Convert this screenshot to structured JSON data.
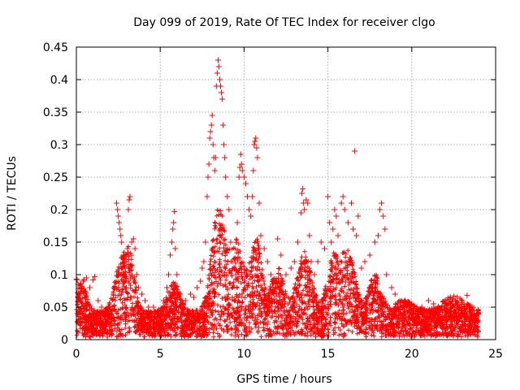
{
  "chart_data": {
    "type": "scatter",
    "title": "Day 099 of 2019, Rate Of TEC Index for receiver clgo",
    "xlabel": "GPS time / hours",
    "ylabel": "ROTI / TECUs",
    "xlim": [
      0,
      25
    ],
    "ylim": [
      0,
      0.45
    ],
    "xticks": [
      0,
      5,
      10,
      15,
      20,
      25
    ],
    "xtick_labels": [
      "0",
      "5",
      "10",
      "15",
      "20",
      "25"
    ],
    "yticks": [
      0,
      0.05,
      0.1,
      0.15,
      0.2,
      0.25,
      0.3,
      0.35,
      0.4,
      0.45
    ],
    "ytick_labels": [
      "0",
      "0.05",
      "0.1",
      "0.15",
      "0.2",
      "0.25",
      "0.3",
      "0.35",
      "0.4",
      "0.45"
    ],
    "grid": true,
    "marker": "+",
    "color": "#ff0000",
    "series": [
      {
        "name": "ROTI",
        "points": [
          [
            0.0,
            0.093
          ],
          [
            0.05,
            0.092
          ],
          [
            0.1,
            0.085
          ],
          [
            0.2,
            0.07
          ],
          [
            0.3,
            0.08
          ],
          [
            0.4,
            0.09
          ],
          [
            0.45,
            0.092
          ],
          [
            0.6,
            0.095
          ],
          [
            0.8,
            0.08
          ],
          [
            1.0,
            0.092
          ],
          [
            1.1,
            0.097
          ],
          [
            1.3,
            0.06
          ],
          [
            1.5,
            0.05
          ],
          [
            1.7,
            0.04
          ],
          [
            2.0,
            0.05
          ],
          [
            2.2,
            0.07
          ],
          [
            2.4,
            0.21
          ],
          [
            2.45,
            0.2
          ],
          [
            2.5,
            0.19
          ],
          [
            2.55,
            0.18
          ],
          [
            2.6,
            0.17
          ],
          [
            2.65,
            0.16
          ],
          [
            2.7,
            0.15
          ],
          [
            2.8,
            0.13
          ],
          [
            2.9,
            0.11
          ],
          [
            3.0,
            0.12
          ],
          [
            3.05,
            0.14
          ],
          [
            3.1,
            0.2
          ],
          [
            3.15,
            0.215
          ],
          [
            3.2,
            0.22
          ],
          [
            3.3,
            0.15
          ],
          [
            3.4,
            0.155
          ],
          [
            3.5,
            0.14
          ],
          [
            3.6,
            0.1
          ],
          [
            3.7,
            0.08
          ],
          [
            3.9,
            0.07
          ],
          [
            4.1,
            0.06
          ],
          [
            4.3,
            0.05
          ],
          [
            4.6,
            0.05
          ],
          [
            4.9,
            0.04
          ],
          [
            5.2,
            0.06
          ],
          [
            5.4,
            0.08
          ],
          [
            5.5,
            0.1
          ],
          [
            5.6,
            0.13
          ],
          [
            5.7,
            0.15
          ],
          [
            5.75,
            0.17
          ],
          [
            5.8,
            0.18
          ],
          [
            5.85,
            0.197
          ],
          [
            5.9,
            0.14
          ],
          [
            6.0,
            0.1
          ],
          [
            6.2,
            0.07
          ],
          [
            6.5,
            0.06
          ],
          [
            6.8,
            0.07
          ],
          [
            7.0,
            0.065
          ],
          [
            7.2,
            0.08
          ],
          [
            7.4,
            0.09
          ],
          [
            7.5,
            0.11
          ],
          [
            7.6,
            0.12
          ],
          [
            7.7,
            0.15
          ],
          [
            7.8,
            0.22
          ],
          [
            7.85,
            0.25
          ],
          [
            7.9,
            0.27
          ],
          [
            7.95,
            0.31
          ],
          [
            8.0,
            0.32
          ],
          [
            8.05,
            0.33
          ],
          [
            8.1,
            0.345
          ],
          [
            8.15,
            0.3
          ],
          [
            8.2,
            0.28
          ],
          [
            8.25,
            0.26
          ],
          [
            8.3,
            0.28
          ],
          [
            8.35,
            0.39
          ],
          [
            8.4,
            0.41
          ],
          [
            8.45,
            0.43
          ],
          [
            8.5,
            0.42
          ],
          [
            8.55,
            0.4
          ],
          [
            8.6,
            0.39
          ],
          [
            8.65,
            0.38
          ],
          [
            8.7,
            0.37
          ],
          [
            8.75,
            0.33
          ],
          [
            8.8,
            0.3
          ],
          [
            8.85,
            0.28
          ],
          [
            8.9,
            0.25
          ],
          [
            9.0,
            0.22
          ],
          [
            9.1,
            0.2
          ],
          [
            9.2,
            0.15
          ],
          [
            9.3,
            0.12
          ],
          [
            9.5,
            0.1
          ],
          [
            9.6,
            0.18
          ],
          [
            9.7,
            0.25
          ],
          [
            9.75,
            0.265
          ],
          [
            9.8,
            0.285
          ],
          [
            9.85,
            0.27
          ],
          [
            9.9,
            0.26
          ],
          [
            10.0,
            0.25
          ],
          [
            10.1,
            0.24
          ],
          [
            10.2,
            0.22
          ],
          [
            10.3,
            0.2
          ],
          [
            10.4,
            0.19
          ],
          [
            10.5,
            0.22
          ],
          [
            10.55,
            0.26
          ],
          [
            10.6,
            0.3
          ],
          [
            10.65,
            0.305
          ],
          [
            10.7,
            0.31
          ],
          [
            10.75,
            0.295
          ],
          [
            10.8,
            0.28
          ],
          [
            10.9,
            0.21
          ],
          [
            11.0,
            0.16
          ],
          [
            11.2,
            0.14
          ],
          [
            11.4,
            0.12
          ],
          [
            11.6,
            0.1
          ],
          [
            11.8,
            0.09
          ],
          [
            12.0,
            0.155
          ],
          [
            12.2,
            0.13
          ],
          [
            12.5,
            0.1
          ],
          [
            12.8,
            0.11
          ],
          [
            13.0,
            0.12
          ],
          [
            13.2,
            0.15
          ],
          [
            13.4,
            0.195
          ],
          [
            13.45,
            0.225
          ],
          [
            13.5,
            0.232
          ],
          [
            13.55,
            0.21
          ],
          [
            13.6,
            0.2
          ],
          [
            13.7,
            0.215
          ],
          [
            13.8,
            0.21
          ],
          [
            13.9,
            0.16
          ],
          [
            14.0,
            0.12
          ],
          [
            14.2,
            0.1
          ],
          [
            14.4,
            0.12
          ],
          [
            14.6,
            0.15
          ],
          [
            14.8,
            0.14
          ],
          [
            15.0,
            0.22
          ],
          [
            15.1,
            0.18
          ],
          [
            15.2,
            0.15
          ],
          [
            15.3,
            0.17
          ],
          [
            15.4,
            0.2
          ],
          [
            15.5,
            0.19
          ],
          [
            15.6,
            0.16
          ],
          [
            15.8,
            0.21
          ],
          [
            15.9,
            0.22
          ],
          [
            16.0,
            0.2
          ],
          [
            16.2,
            0.18
          ],
          [
            16.4,
            0.21
          ],
          [
            16.5,
            0.17
          ],
          [
            16.6,
            0.29
          ],
          [
            16.7,
            0.16
          ],
          [
            16.8,
            0.19
          ],
          [
            17.0,
            0.11
          ],
          [
            17.2,
            0.12
          ],
          [
            17.5,
            0.13
          ],
          [
            17.8,
            0.15
          ],
          [
            18.0,
            0.16
          ],
          [
            18.1,
            0.2
          ],
          [
            18.2,
            0.21
          ],
          [
            18.3,
            0.19
          ],
          [
            18.4,
            0.17
          ],
          [
            18.5,
            0.1
          ],
          [
            18.8,
            0.08
          ],
          [
            19.0,
            0.07
          ],
          [
            19.3,
            0.05
          ],
          [
            19.6,
            0.06
          ],
          [
            20.0,
            0.055
          ],
          [
            20.3,
            0.05
          ],
          [
            20.6,
            0.05
          ],
          [
            21.0,
            0.06
          ],
          [
            21.3,
            0.055
          ],
          [
            21.6,
            0.05
          ],
          [
            22.0,
            0.06
          ],
          [
            22.3,
            0.065
          ],
          [
            22.6,
            0.06
          ],
          [
            23.0,
            0.06
          ],
          [
            23.3,
            0.068
          ],
          [
            23.6,
            0.05
          ],
          [
            23.9,
            0.04
          ]
        ]
      }
    ]
  }
}
